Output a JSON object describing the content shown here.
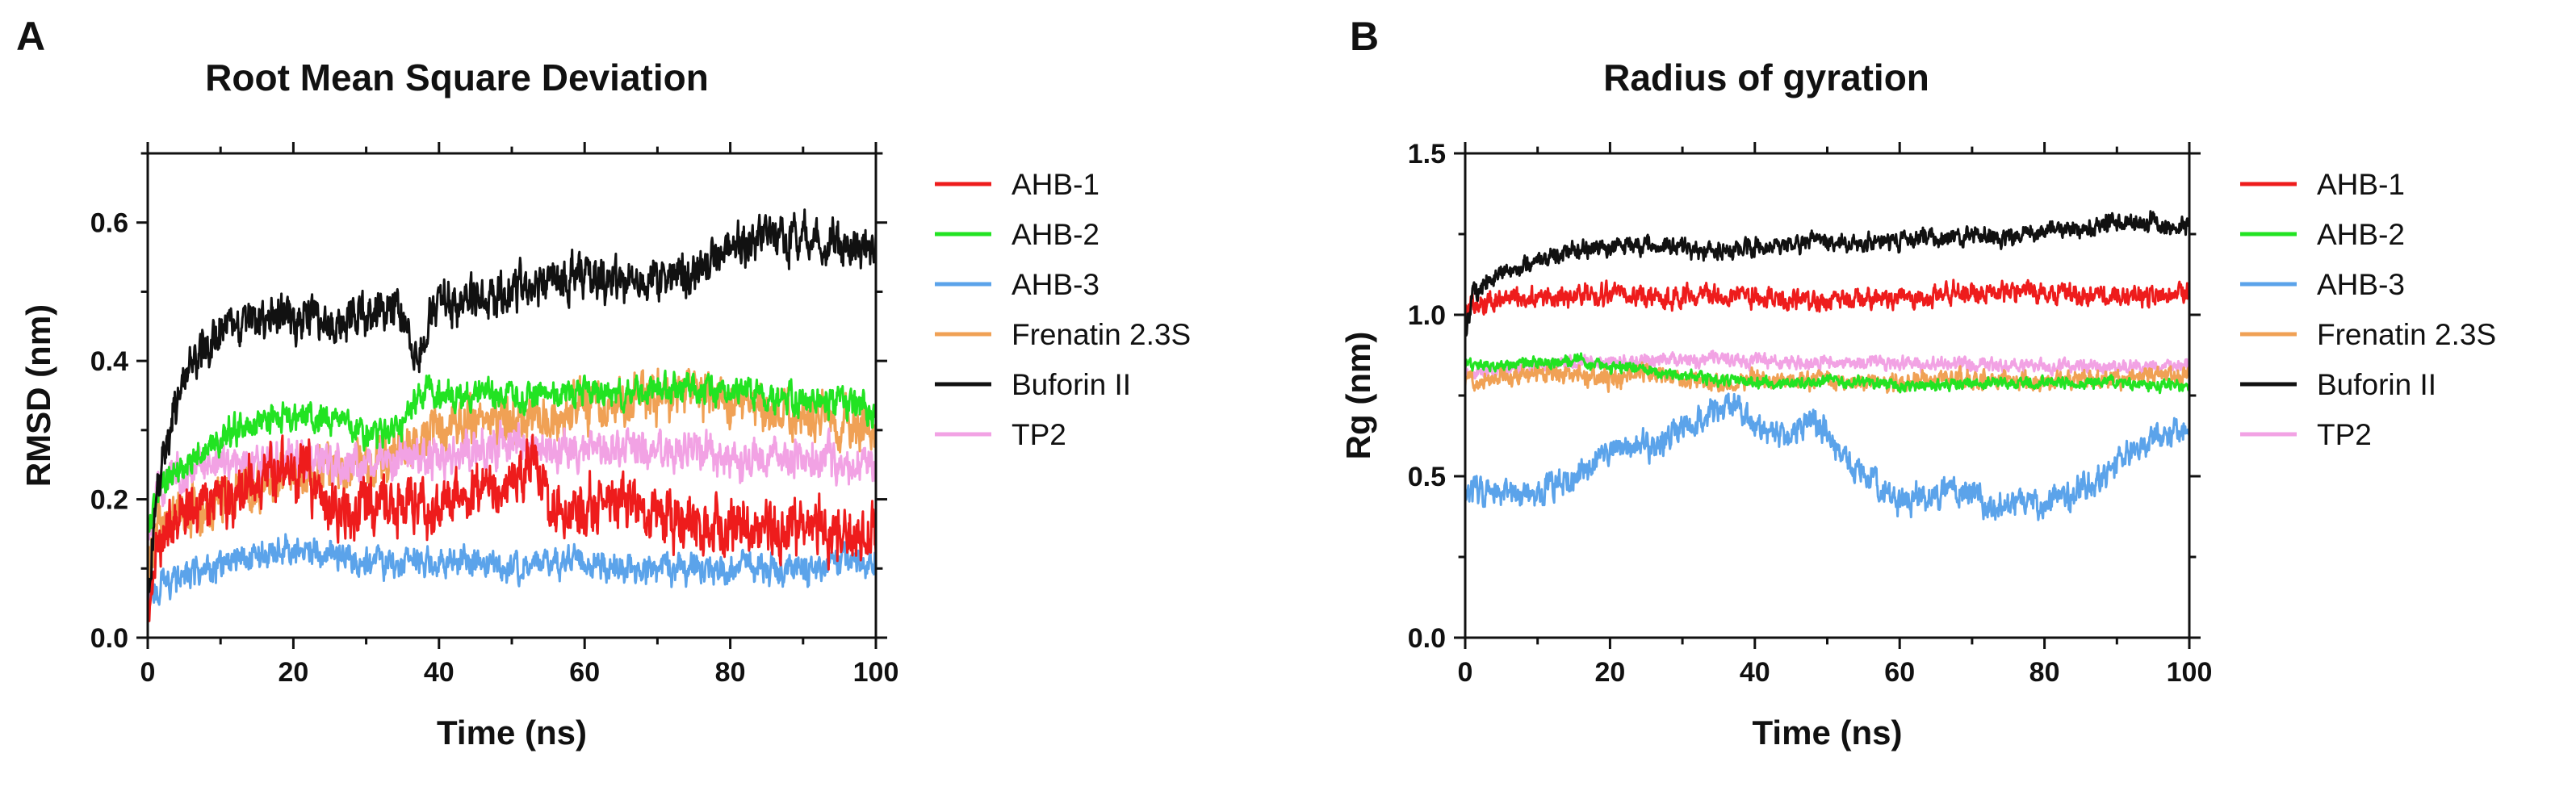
{
  "panels": [
    {
      "letter": "A"
    },
    {
      "letter": "B"
    }
  ],
  "legend_entries": [
    {
      "label": "AHB-1",
      "color": "#ee1c1c"
    },
    {
      "label": "AHB-2",
      "color": "#22e322"
    },
    {
      "label": "AHB-3",
      "color": "#5ba3ea"
    },
    {
      "label": "Frenatin 2.3S",
      "color": "#f0a155"
    },
    {
      "label": "Buforin II",
      "color": "#111111"
    },
    {
      "label": "TP2",
      "color": "#f2a2e4"
    }
  ],
  "chart_data": [
    {
      "type": "line",
      "title": "Root Mean Square Deviation",
      "xlabel": "Time (ns)",
      "ylabel": "RMSD (nm)",
      "xlim": [
        0,
        100
      ],
      "ylim": [
        0,
        0.7
      ],
      "xticks": [
        0,
        20,
        40,
        60,
        80,
        100
      ],
      "xtick_labels": [
        "0",
        "20",
        "40",
        "60",
        "80",
        "100"
      ],
      "yticks": [
        0.0,
        0.2,
        0.4,
        0.6
      ],
      "ytick_labels": [
        "0.0",
        "0.2",
        "0.4",
        "0.6"
      ],
      "legend_position": "right",
      "series": [
        {
          "name": "Frenatin 2.3S",
          "color": "#f0a155",
          "noise": 0.025,
          "x": [
            0,
            1,
            2,
            5,
            10,
            15,
            20,
            25,
            30,
            35,
            40,
            45,
            50,
            55,
            60,
            65,
            70,
            75,
            80,
            85,
            90,
            95,
            100
          ],
          "y": [
            0.1,
            0.15,
            0.17,
            0.18,
            0.2,
            0.22,
            0.24,
            0.24,
            0.25,
            0.27,
            0.3,
            0.31,
            0.32,
            0.32,
            0.33,
            0.34,
            0.35,
            0.35,
            0.34,
            0.33,
            0.32,
            0.31,
            0.3
          ]
        },
        {
          "name": "TP2",
          "color": "#f2a2e4",
          "noise": 0.02,
          "x": [
            0,
            1,
            2,
            5,
            10,
            15,
            20,
            25,
            30,
            35,
            40,
            45,
            50,
            55,
            60,
            65,
            70,
            75,
            80,
            85,
            90,
            95,
            100
          ],
          "y": [
            0.15,
            0.2,
            0.22,
            0.24,
            0.26,
            0.25,
            0.26,
            0.25,
            0.25,
            0.26,
            0.26,
            0.27,
            0.28,
            0.27,
            0.27,
            0.27,
            0.27,
            0.27,
            0.26,
            0.26,
            0.26,
            0.26,
            0.25
          ]
        },
        {
          "name": "AHB-3",
          "color": "#5ba3ea",
          "noise": 0.015,
          "x": [
            0,
            1,
            2,
            5,
            10,
            15,
            20,
            25,
            30,
            35,
            40,
            45,
            50,
            55,
            60,
            65,
            70,
            75,
            80,
            85,
            90,
            95,
            100
          ],
          "y": [
            0.05,
            0.07,
            0.08,
            0.09,
            0.1,
            0.12,
            0.13,
            0.12,
            0.11,
            0.11,
            0.11,
            0.11,
            0.1,
            0.11,
            0.11,
            0.1,
            0.1,
            0.1,
            0.1,
            0.1,
            0.1,
            0.11,
            0.11
          ]
        },
        {
          "name": "AHB-2",
          "color": "#22e322",
          "noise": 0.015,
          "x": [
            0,
            1,
            2,
            5,
            10,
            15,
            20,
            25,
            30,
            35,
            38,
            40,
            45,
            50,
            55,
            60,
            65,
            70,
            75,
            80,
            85,
            90,
            95,
            100
          ],
          "y": [
            0.15,
            0.2,
            0.22,
            0.25,
            0.29,
            0.31,
            0.32,
            0.32,
            0.29,
            0.31,
            0.36,
            0.35,
            0.35,
            0.35,
            0.35,
            0.36,
            0.35,
            0.36,
            0.36,
            0.35,
            0.35,
            0.34,
            0.34,
            0.33
          ]
        },
        {
          "name": "AHB-1",
          "color": "#ee1c1c",
          "noise": 0.028,
          "x": [
            0,
            1,
            2,
            5,
            10,
            15,
            20,
            22,
            25,
            30,
            35,
            40,
            45,
            50,
            53,
            55,
            60,
            65,
            70,
            75,
            80,
            85,
            90,
            95,
            100
          ],
          "y": [
            0.05,
            0.12,
            0.15,
            0.18,
            0.2,
            0.22,
            0.25,
            0.24,
            0.18,
            0.19,
            0.2,
            0.19,
            0.2,
            0.22,
            0.26,
            0.19,
            0.19,
            0.2,
            0.18,
            0.17,
            0.17,
            0.16,
            0.16,
            0.15,
            0.15
          ]
        },
        {
          "name": "Buforin II",
          "color": "#111111",
          "noise": 0.022,
          "x": [
            0,
            1,
            2,
            5,
            8,
            10,
            15,
            20,
            25,
            30,
            35,
            37,
            40,
            45,
            50,
            55,
            60,
            65,
            70,
            75,
            80,
            85,
            90,
            95,
            100
          ],
          "y": [
            0.05,
            0.2,
            0.26,
            0.38,
            0.42,
            0.44,
            0.46,
            0.47,
            0.45,
            0.47,
            0.47,
            0.41,
            0.48,
            0.49,
            0.5,
            0.52,
            0.52,
            0.51,
            0.52,
            0.52,
            0.57,
            0.58,
            0.58,
            0.57,
            0.56
          ]
        }
      ]
    },
    {
      "type": "line",
      "title": "Radius of gyration",
      "xlabel": "Time (ns)",
      "ylabel": "Rg (nm)",
      "xlim": [
        0,
        100
      ],
      "ylim": [
        0,
        1.5
      ],
      "xticks": [
        0,
        20,
        40,
        60,
        80,
        100
      ],
      "xtick_labels": [
        "0",
        "20",
        "40",
        "60",
        "80",
        "100"
      ],
      "yticks": [
        0.0,
        0.5,
        1.0,
        1.5
      ],
      "ytick_labels": [
        "0.0",
        "0.5",
        "1.0",
        "1.5"
      ],
      "legend_position": "right",
      "series": [
        {
          "name": "TP2",
          "color": "#f2a2e4",
          "noise": 0.015,
          "x": [
            0,
            5,
            10,
            15,
            20,
            25,
            30,
            35,
            40,
            45,
            50,
            55,
            60,
            65,
            70,
            75,
            80,
            85,
            90,
            95,
            100
          ],
          "y": [
            0.82,
            0.83,
            0.84,
            0.85,
            0.85,
            0.86,
            0.86,
            0.86,
            0.86,
            0.85,
            0.85,
            0.85,
            0.85,
            0.85,
            0.84,
            0.84,
            0.84,
            0.84,
            0.84,
            0.84,
            0.84
          ]
        },
        {
          "name": "Frenatin 2.3S",
          "color": "#f0a155",
          "noise": 0.02,
          "x": [
            0,
            5,
            10,
            15,
            20,
            25,
            30,
            35,
            40,
            45,
            50,
            55,
            60,
            65,
            70,
            75,
            80,
            85,
            90,
            95,
            100
          ],
          "y": [
            0.8,
            0.81,
            0.82,
            0.81,
            0.8,
            0.82,
            0.8,
            0.79,
            0.8,
            0.79,
            0.8,
            0.79,
            0.79,
            0.8,
            0.8,
            0.8,
            0.79,
            0.8,
            0.8,
            0.81,
            0.81
          ]
        },
        {
          "name": "AHB-3",
          "color": "#5ba3ea",
          "noise": 0.03,
          "x": [
            0,
            3,
            6,
            10,
            14,
            18,
            22,
            26,
            30,
            34,
            37,
            40,
            44,
            48,
            52,
            56,
            60,
            64,
            68,
            72,
            76,
            80,
            84,
            88,
            92,
            96,
            100
          ],
          "y": [
            0.47,
            0.45,
            0.44,
            0.45,
            0.48,
            0.55,
            0.58,
            0.6,
            0.65,
            0.7,
            0.72,
            0.66,
            0.62,
            0.68,
            0.56,
            0.5,
            0.42,
            0.44,
            0.46,
            0.42,
            0.41,
            0.42,
            0.45,
            0.5,
            0.58,
            0.62,
            0.63
          ]
        },
        {
          "name": "AHB-2",
          "color": "#22e322",
          "noise": 0.012,
          "x": [
            0,
            5,
            10,
            15,
            20,
            25,
            30,
            35,
            40,
            45,
            50,
            55,
            60,
            65,
            70,
            75,
            80,
            85,
            90,
            95,
            100
          ],
          "y": [
            0.85,
            0.84,
            0.85,
            0.86,
            0.84,
            0.83,
            0.81,
            0.8,
            0.79,
            0.79,
            0.79,
            0.79,
            0.78,
            0.78,
            0.79,
            0.79,
            0.79,
            0.79,
            0.79,
            0.78,
            0.78
          ]
        },
        {
          "name": "AHB-1",
          "color": "#ee1c1c",
          "noise": 0.022,
          "x": [
            0,
            2,
            5,
            10,
            15,
            20,
            25,
            30,
            35,
            40,
            45,
            50,
            55,
            60,
            65,
            70,
            75,
            80,
            85,
            90,
            95,
            100
          ],
          "y": [
            1.02,
            1.04,
            1.05,
            1.05,
            1.06,
            1.06,
            1.05,
            1.06,
            1.06,
            1.06,
            1.05,
            1.05,
            1.05,
            1.05,
            1.06,
            1.07,
            1.07,
            1.07,
            1.06,
            1.06,
            1.06,
            1.06
          ]
        },
        {
          "name": "Buforin II",
          "color": "#111111",
          "noise": 0.02,
          "x": [
            0,
            1,
            3,
            5,
            10,
            15,
            20,
            25,
            30,
            35,
            40,
            45,
            50,
            55,
            60,
            65,
            70,
            75,
            80,
            85,
            90,
            95,
            100
          ],
          "y": [
            0.95,
            1.05,
            1.1,
            1.13,
            1.17,
            1.2,
            1.21,
            1.22,
            1.21,
            1.2,
            1.21,
            1.22,
            1.23,
            1.22,
            1.23,
            1.24,
            1.25,
            1.24,
            1.26,
            1.27,
            1.29,
            1.28,
            1.27
          ]
        }
      ]
    }
  ]
}
